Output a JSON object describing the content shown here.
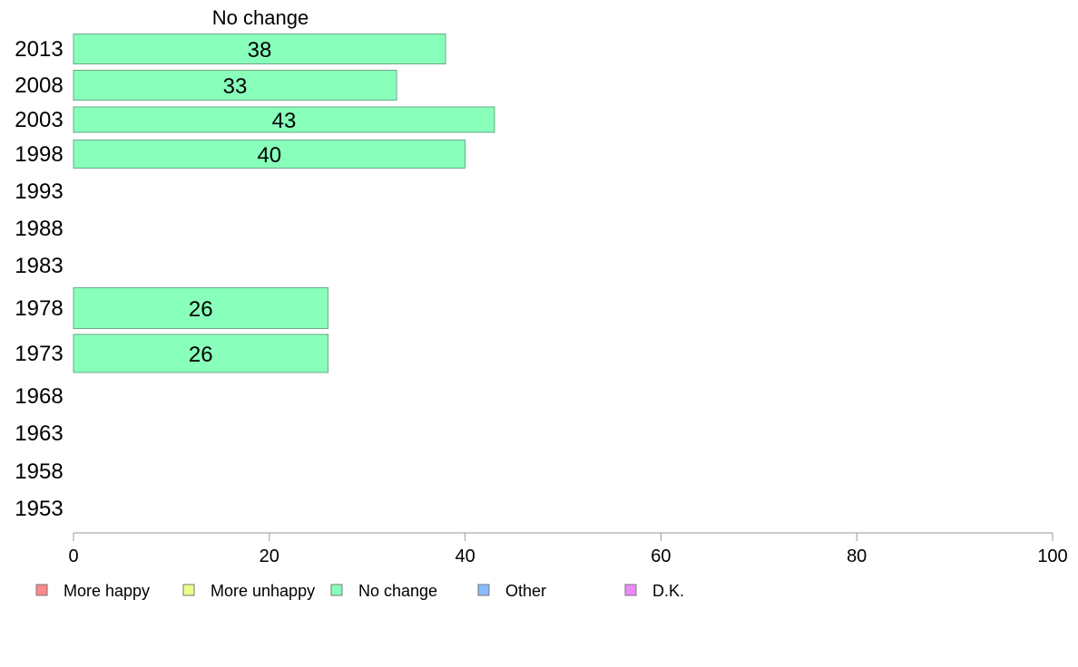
{
  "chart_data": {
    "type": "bar",
    "orientation": "horizontal",
    "title": "No change",
    "categories": [
      "2013",
      "2008",
      "2003",
      "1998",
      "1993",
      "1988",
      "1983",
      "1978",
      "1973",
      "1968",
      "1963",
      "1958",
      "1953"
    ],
    "values": [
      38,
      33,
      43,
      40,
      null,
      null,
      null,
      26,
      26,
      null,
      null,
      null,
      null
    ],
    "value_labels": [
      "38",
      "33",
      "43",
      "40",
      "",
      "",
      "",
      "26",
      "26",
      "",
      "",
      "",
      ""
    ],
    "xlim": [
      0,
      100
    ],
    "xticks": [
      "0",
      "20",
      "40",
      "60",
      "80",
      "100"
    ],
    "bar_color": "#88ffbb",
    "grid": false,
    "legend_position": "bottom",
    "legend": [
      {
        "label": "More happy",
        "color": "#ff8888"
      },
      {
        "label": "More unhappy",
        "color": "#eeff88"
      },
      {
        "label": "No change",
        "color": "#88ffbb"
      },
      {
        "label": "Other",
        "color": "#88bbff"
      },
      {
        "label": "D.K.",
        "color": "#ee88ff"
      }
    ]
  }
}
